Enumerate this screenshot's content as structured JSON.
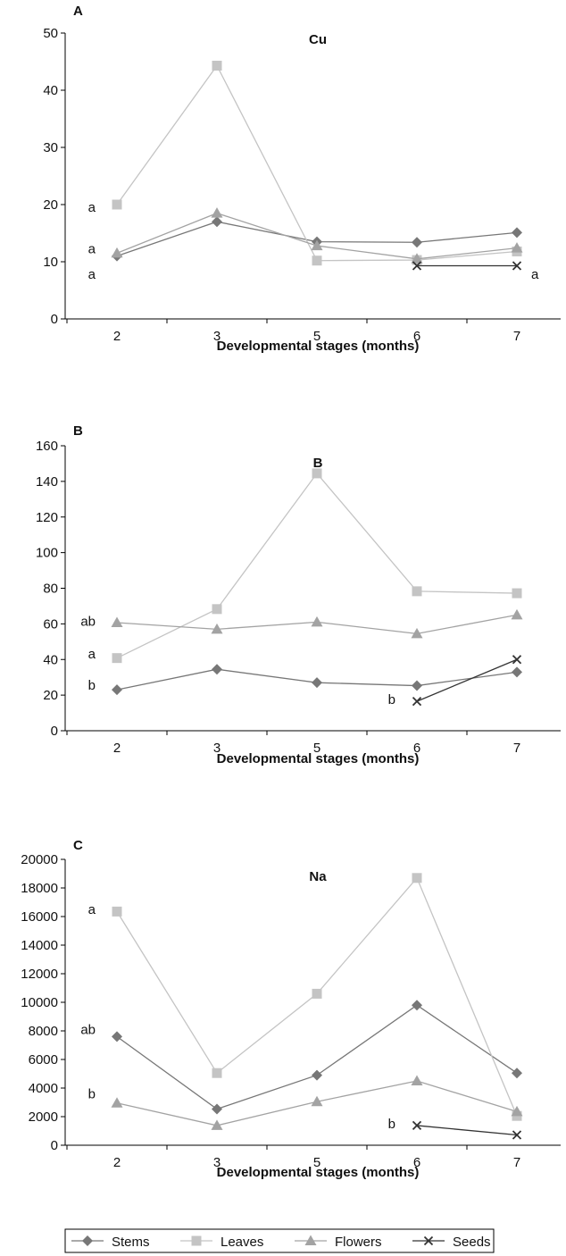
{
  "colors": {
    "Stems": "#777777",
    "Leaves": "#c4c4c4",
    "Flowers": "#a3a3a3",
    "Seeds": "#333333",
    "axis": "#000000"
  },
  "chart_data": [
    {
      "type": "line",
      "panel_label": "A",
      "title": "Cu",
      "xlabel": "Developmental stages  (months)",
      "ylabel": "",
      "categories": [
        "2",
        "3",
        "5",
        "6",
        "7"
      ],
      "ylim": [
        0,
        50
      ],
      "yticks": [
        0,
        10,
        20,
        30,
        40,
        50
      ],
      "series": [
        {
          "name": "Stems",
          "marker": "diamond",
          "values": [
            11,
            17,
            13.5,
            13.4,
            15.1
          ]
        },
        {
          "name": "Leaves",
          "marker": "square",
          "values": [
            20,
            44.3,
            10.2,
            10.3,
            11.8
          ]
        },
        {
          "name": "Flowers",
          "marker": "triangle",
          "values": [
            11.5,
            18.5,
            12.8,
            10.5,
            12.4
          ]
        },
        {
          "name": "Seeds",
          "marker": "x",
          "values": [
            null,
            null,
            null,
            9.3,
            9.3
          ]
        }
      ],
      "annotations": [
        {
          "text": "a",
          "category": "2",
          "y": 19.5,
          "side": "left"
        },
        {
          "text": "a",
          "category": "2",
          "y": 12.3,
          "side": "left"
        },
        {
          "text": "a",
          "category": "2",
          "y": 7.8,
          "side": "left"
        },
        {
          "text": "a",
          "category": "7",
          "y": 7.8,
          "side": "right"
        }
      ]
    },
    {
      "type": "line",
      "panel_label": "B",
      "title": "B",
      "xlabel": "Developmental stages (months)",
      "ylabel": "",
      "categories": [
        "2",
        "3",
        "5",
        "6",
        "7"
      ],
      "ylim": [
        0,
        160
      ],
      "yticks": [
        0,
        20,
        40,
        60,
        80,
        100,
        120,
        140,
        160
      ],
      "series": [
        {
          "name": "Stems",
          "marker": "diamond",
          "values": [
            23,
            34.5,
            27,
            25.3,
            32.9
          ]
        },
        {
          "name": "Leaves",
          "marker": "square",
          "values": [
            40.8,
            68.3,
            144.5,
            78.3,
            77.2
          ]
        },
        {
          "name": "Flowers",
          "marker": "triangle",
          "values": [
            60.7,
            57,
            61,
            54.5,
            65
          ]
        },
        {
          "name": "Seeds",
          "marker": "x",
          "values": [
            null,
            null,
            null,
            16.5,
            40
          ]
        }
      ],
      "annotations": [
        {
          "text": "ab",
          "category": "2",
          "y": 61.5,
          "side": "left"
        },
        {
          "text": "a",
          "category": "2",
          "y": 43.2,
          "side": "left"
        },
        {
          "text": "b",
          "category": "2",
          "y": 25.5,
          "side": "left"
        },
        {
          "text": "b",
          "category": "6",
          "y": 17.5,
          "side": "left"
        }
      ]
    },
    {
      "type": "line",
      "panel_label": "C",
      "title": "Na",
      "xlabel": "Developmental stages (months)",
      "ylabel": "",
      "categories": [
        "2",
        "3",
        "5",
        "6",
        "7"
      ],
      "ylim": [
        0,
        20000
      ],
      "yticks": [
        0,
        2000,
        4000,
        6000,
        8000,
        10000,
        12000,
        14000,
        16000,
        18000,
        20000
      ],
      "series": [
        {
          "name": "Stems",
          "marker": "diamond",
          "values": [
            7600,
            2530,
            4900,
            9800,
            5050
          ]
        },
        {
          "name": "Leaves",
          "marker": "square",
          "values": [
            16350,
            5050,
            10600,
            18700,
            2050
          ]
        },
        {
          "name": "Flowers",
          "marker": "triangle",
          "values": [
            2950,
            1380,
            3050,
            4500,
            2350
          ]
        },
        {
          "name": "Seeds",
          "marker": "x",
          "values": [
            null,
            null,
            null,
            1380,
            720
          ]
        }
      ],
      "annotations": [
        {
          "text": "a",
          "category": "2",
          "y": 16500,
          "side": "left"
        },
        {
          "text": "ab",
          "category": "2",
          "y": 8100,
          "side": "left"
        },
        {
          "text": "b",
          "category": "2",
          "y": 3600,
          "side": "left"
        },
        {
          "text": "b",
          "category": "6",
          "y": 1500,
          "side": "left"
        }
      ]
    }
  ],
  "legend": {
    "placement": "bottom",
    "entries": [
      {
        "name": "Stems",
        "marker": "diamond"
      },
      {
        "name": "Leaves",
        "marker": "square"
      },
      {
        "name": "Flowers",
        "marker": "triangle"
      },
      {
        "name": "Seeds",
        "marker": "x"
      }
    ]
  }
}
